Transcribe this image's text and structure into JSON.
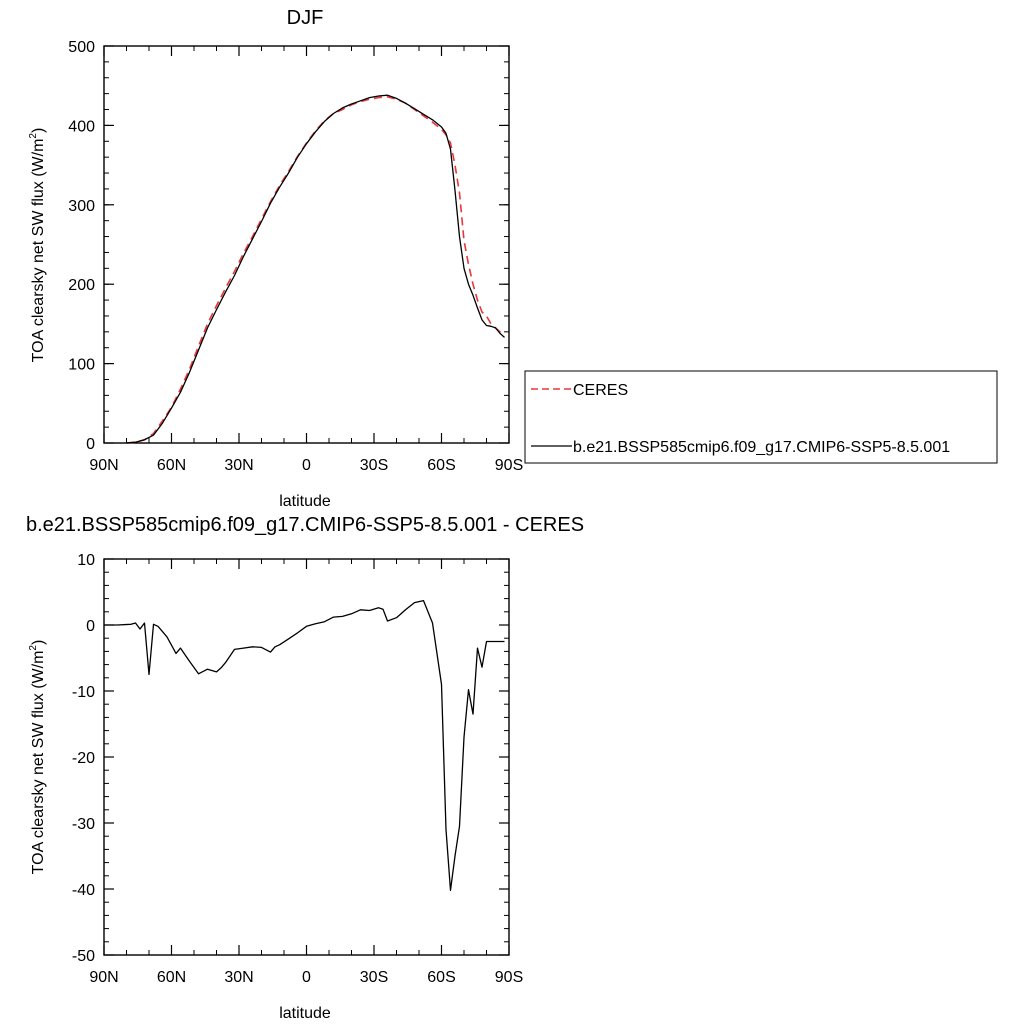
{
  "chart_data": [
    {
      "type": "line",
      "title": "DJF",
      "xlabel": "latitude",
      "ylabel": "TOA clearsky net SW flux (W/m",
      "ylabel_sup": "2",
      "ylabel_close": ")",
      "xlim": [
        90,
        -90
      ],
      "ylim": [
        0,
        500
      ],
      "xticks": [
        90,
        60,
        30,
        0,
        -30,
        -60,
        -90
      ],
      "xtick_labels": [
        "90N",
        "60N",
        "30N",
        "0",
        "30S",
        "60S",
        "90S"
      ],
      "yticks": [
        0,
        100,
        200,
        300,
        400,
        500
      ],
      "ytick_labels": [
        "0",
        "100",
        "200",
        "300",
        "400",
        "500"
      ],
      "legend_position": "outside-right",
      "series": [
        {
          "name": "CERES",
          "color": "#e8373b",
          "dash": "dashed",
          "x": [
            80,
            76,
            72,
            68,
            64,
            60,
            56,
            52,
            48,
            44,
            40,
            36,
            32,
            28,
            24,
            20,
            16,
            12,
            8,
            4,
            0,
            -4,
            -8,
            -12,
            -16,
            -20,
            -24,
            -28,
            -32,
            -36,
            -40,
            -44,
            -48,
            -52,
            -56,
            -60,
            -62,
            -64,
            -66,
            -68,
            -70,
            -72,
            -74,
            -76,
            -78,
            -80,
            -82,
            -84,
            -86,
            -88
          ],
          "y": [
            0,
            1,
            4,
            12,
            28,
            45,
            68,
            93,
            122,
            150,
            173,
            195,
            216,
            239,
            260,
            282,
            304,
            324,
            342,
            361,
            378,
            393,
            406,
            415,
            420,
            426,
            430,
            433,
            435,
            436,
            433,
            428,
            420,
            412,
            404,
            395,
            388,
            378,
            350,
            315,
            255,
            225,
            200,
            180,
            165,
            160,
            150,
            145,
            140,
            136
          ]
        },
        {
          "name": "b.e21.BSSP585cmip6.f09_g17.CMIP6-SSP5-8.5.001",
          "color": "#000000",
          "dash": "solid",
          "x": [
            80,
            76,
            72,
            68,
            64,
            60,
            56,
            52,
            48,
            44,
            40,
            36,
            32,
            28,
            24,
            20,
            16,
            12,
            8,
            4,
            0,
            -4,
            -8,
            -12,
            -16,
            -20,
            -24,
            -28,
            -32,
            -36,
            -40,
            -44,
            -48,
            -52,
            -56,
            -60,
            -62,
            -64,
            -66,
            -68,
            -70,
            -72,
            -74,
            -76,
            -78,
            -80,
            -82,
            -84,
            -86,
            -88
          ],
          "y": [
            0,
            1,
            4,
            10,
            25,
            44,
            64,
            89,
            117,
            145,
            168,
            190,
            211,
            235,
            257,
            279,
            302,
            322,
            340,
            360,
            377,
            392,
            405,
            415,
            422,
            427,
            431,
            435,
            437,
            438,
            434,
            428,
            421,
            414,
            407,
            398,
            390,
            370,
            318,
            260,
            220,
            200,
            186,
            170,
            155,
            148,
            147,
            145,
            138,
            133
          ]
        }
      ]
    },
    {
      "type": "line",
      "title": "b.e21.BSSP585cmip6.f09_g17.CMIP6-SSP5-8.5.001 - CERES",
      "xlabel": "latitude",
      "ylabel": "TOA clearsky net SW flux (W/m",
      "ylabel_sup": "2",
      "ylabel_close": ")",
      "xlim": [
        90,
        -90
      ],
      "ylim": [
        -50,
        10
      ],
      "xticks": [
        90,
        60,
        30,
        0,
        -30,
        -60,
        -90
      ],
      "xtick_labels": [
        "90N",
        "60N",
        "30N",
        "0",
        "30S",
        "60S",
        "90S"
      ],
      "yticks": [
        -50,
        -40,
        -30,
        -20,
        -10,
        0,
        10
      ],
      "ytick_labels": [
        "-50",
        "-40",
        "-30",
        "-20",
        "-10",
        "0",
        "10"
      ],
      "series": [
        {
          "color": "#000000",
          "dash": "solid",
          "x": [
            90,
            84,
            78,
            76,
            74,
            72,
            70,
            68,
            66,
            62,
            58,
            56,
            54,
            52,
            48,
            44,
            40,
            38,
            36,
            32,
            28,
            24,
            20,
            16,
            14,
            12,
            8,
            4,
            0,
            -4,
            -8,
            -12,
            -16,
            -20,
            -24,
            -28,
            -32,
            -34,
            -36,
            -40,
            -44,
            -48,
            -52,
            -56,
            -60,
            -62,
            -64,
            -66,
            -68,
            -70,
            -72,
            -74,
            -76,
            -78,
            -80,
            -82,
            -84,
            -86,
            -88
          ],
          "y": [
            0,
            0,
            0.1,
            0.3,
            -0.6,
            0.3,
            -7.5,
            0.1,
            -0.2,
            -1.8,
            -4.3,
            -3.5,
            -4.5,
            -5.5,
            -7.4,
            -6.7,
            -7.1,
            -6.5,
            -5.7,
            -3.7,
            -3.5,
            -3.3,
            -3.4,
            -4.1,
            -3.3,
            -3.0,
            -2.1,
            -1.2,
            -0.2,
            0.2,
            0.5,
            1.2,
            1.3,
            1.7,
            2.3,
            2.2,
            2.6,
            2.4,
            0.6,
            1.1,
            2.3,
            3.4,
            3.7,
            0.3,
            -9,
            -31,
            -40.2,
            -35,
            -30.5,
            -17,
            -9.8,
            -13.5,
            -3.5,
            -6.4,
            -2.5,
            -2.5,
            -2.5,
            -2.5,
            -2.5
          ]
        }
      ]
    }
  ]
}
